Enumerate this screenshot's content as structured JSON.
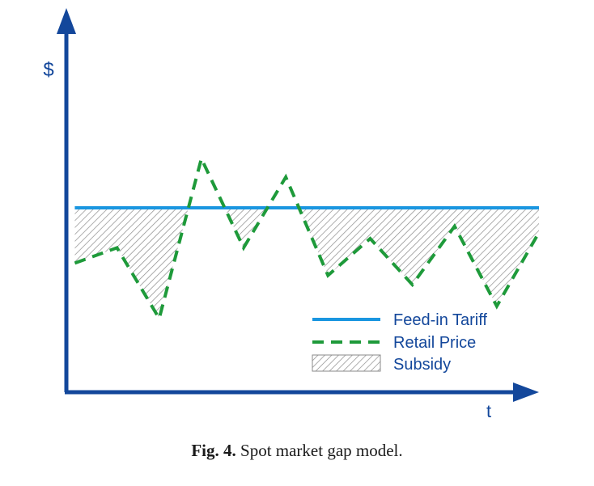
{
  "chart_data": {
    "type": "line",
    "ylabel": "$",
    "xlabel": "t",
    "x": [
      1,
      2,
      3,
      4,
      5,
      6,
      7,
      8,
      9,
      10,
      11,
      12
    ],
    "series": [
      {
        "name": "Feed-in Tariff",
        "style": "solid",
        "color": "#1a96e0",
        "values": [
          60,
          60,
          60,
          60,
          60,
          60,
          60,
          60,
          60,
          60,
          60,
          60
        ]
      },
      {
        "name": "Retail Price",
        "style": "dashed",
        "color": "#1e9a3a",
        "values": [
          42,
          47,
          24,
          76,
          47,
          70,
          38,
          50,
          35,
          54,
          28,
          52
        ]
      }
    ],
    "fill": {
      "name": "Subsidy",
      "pattern": "hatched",
      "color": "#8a8a8a"
    },
    "xlim": [
      0.8,
      12
    ],
    "ylim": [
      0,
      125
    ],
    "axis_color": "#13479b",
    "grid": false,
    "legend_position": "bottom-right"
  },
  "caption": {
    "label": "Fig. 4.",
    "text": "Spot market gap model."
  }
}
